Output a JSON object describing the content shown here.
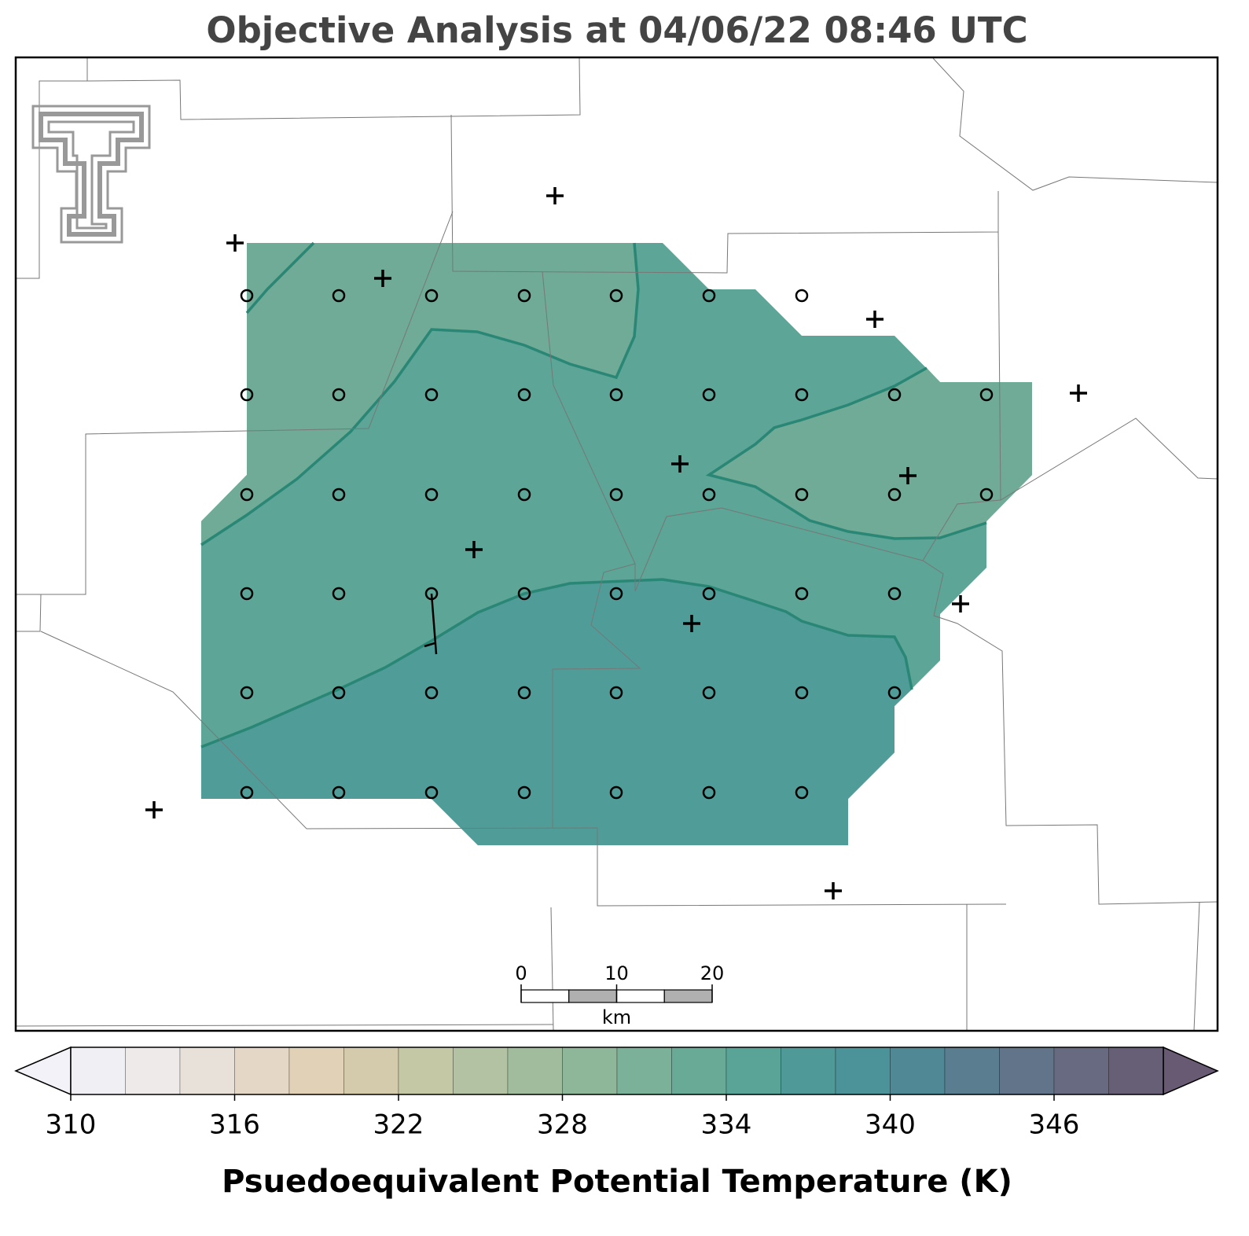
{
  "title": "Objective Analysis at 04/06/22 08:46 UTC",
  "colorbar": {
    "label": "Psuedoequivalent Potential Temperature (K)",
    "boundaries": [
      310,
      312,
      314,
      316,
      318,
      320,
      322,
      324,
      326,
      328,
      330,
      332,
      334,
      336,
      338,
      340,
      342,
      344,
      346,
      348,
      350
    ],
    "colors": [
      "#f0eff4",
      "#eeeaea",
      "#e8e1da",
      "#e4d7c5",
      "#e1d1b6",
      "#d3cbab",
      "#c5c8a5",
      "#b3c2a3",
      "#a1bc9d",
      "#8eb699",
      "#7ab198",
      "#69aa96",
      "#59a497",
      "#4f9a98",
      "#4c9299",
      "#518896",
      "#5a7e90",
      "#627489",
      "#676a80",
      "#675f76"
    ],
    "extend_colors": [
      "#f3f2f8",
      "#675a72"
    ],
    "ticks": [
      310,
      316,
      322,
      328,
      334,
      340,
      346
    ]
  },
  "scale_bar": {
    "ticks": [
      0,
      10,
      20
    ],
    "unit": "km"
  }
}
